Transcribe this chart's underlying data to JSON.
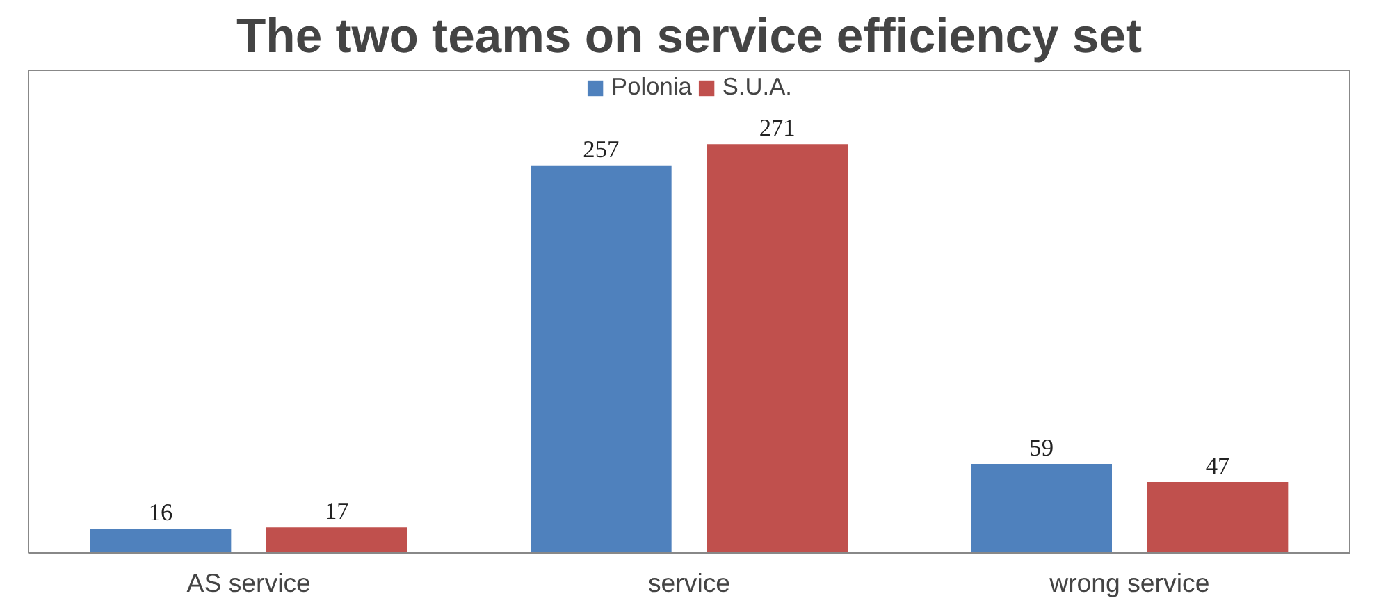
{
  "chart_data": {
    "type": "bar",
    "title": "The two teams on service efficiency set",
    "categories": [
      "AS service",
      "service",
      "wrong service"
    ],
    "series": [
      {
        "name": "Polonia",
        "color": "#4f81bd",
        "values": [
          16,
          257,
          59
        ]
      },
      {
        "name": "S.U.A.",
        "color": "#c0504d",
        "values": [
          17,
          271,
          47
        ]
      }
    ],
    "ylim": [
      0,
      320
    ],
    "tick_labels": "x",
    "data_labels": true,
    "legend": "top",
    "grid": false
  }
}
